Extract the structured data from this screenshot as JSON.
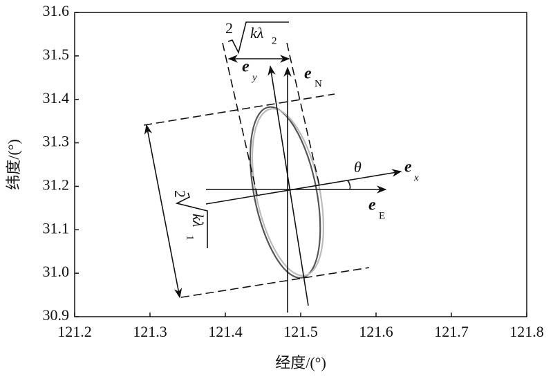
{
  "chart_data": {
    "type": "ellipse",
    "xlabel": "经度/(°)",
    "ylabel": "纬度/(°)",
    "xlim": [
      121.2,
      121.8
    ],
    "xticks": [
      121.2,
      121.3,
      121.4,
      121.5,
      121.6,
      121.7,
      121.8
    ],
    "ylim": [
      30.9,
      31.6
    ],
    "yticks": [
      30.9,
      {
        "value": 31,
        "label": "31.0"
      },
      31.1,
      31.2,
      31.3,
      31.4,
      31.5,
      31.6
    ],
    "ellipses": [
      {
        "color": "#555555",
        "major": [
          [
            121.457,
            31.382
          ],
          [
            121.502,
            30.99
          ]
        ],
        "minor": [
          [
            121.439,
            31.2
          ],
          [
            121.521,
            31.18
          ]
        ]
      },
      {
        "color": "#bbbbbb",
        "major": [
          [
            121.46,
            31.378
          ],
          [
            121.506,
            30.995
          ]
        ],
        "minor": [
          [
            121.442,
            31.2
          ],
          [
            121.525,
            31.175
          ]
        ]
      }
    ],
    "labels": {
      "dim2": {
        "coef": "2",
        "rad": "kλ",
        "sub": "2"
      },
      "dim1": {
        "coef": "2",
        "rad": "kλ",
        "sub": "1"
      },
      "ey": {
        "text": "e",
        "sub": "y"
      },
      "eN": {
        "text": "e",
        "sub": "N"
      },
      "ex": {
        "text": "e",
        "sub": "x"
      },
      "eE": {
        "text": "e",
        "sub": "E"
      },
      "theta": "θ"
    }
  }
}
